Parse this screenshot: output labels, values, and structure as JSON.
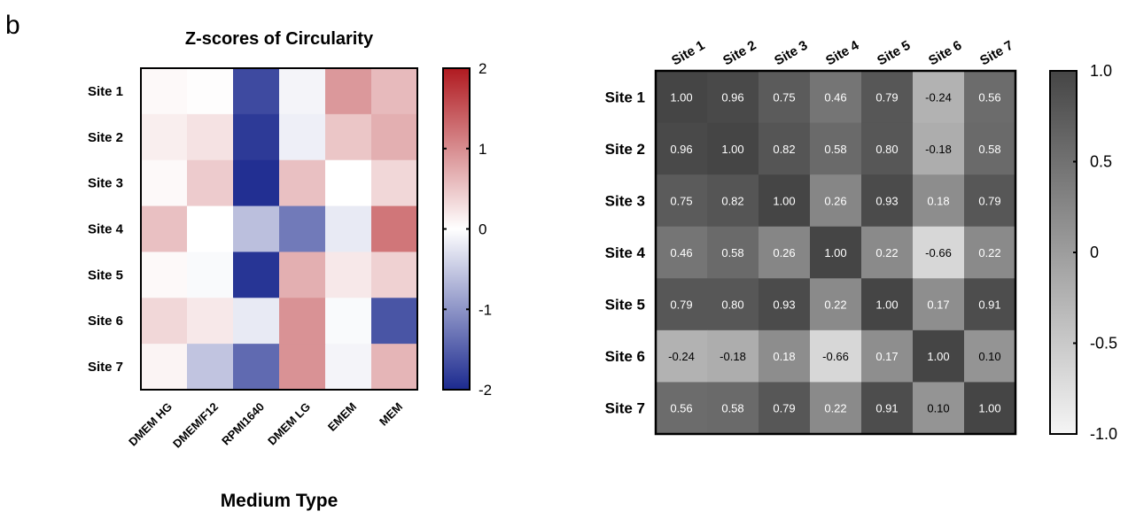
{
  "panel_label": "b",
  "chart_data": [
    {
      "type": "heatmap",
      "title": "Z-scores of Circularity",
      "xlabel": "Medium Type",
      "ylabel": "",
      "rows": [
        "Site 1",
        "Site 2",
        "Site 3",
        "Site 4",
        "Site 5",
        "Site 6",
        "Site 7"
      ],
      "columns": [
        "DMEM HG",
        "DMEM/F12",
        "RPMI1640",
        "DMEM LG",
        "EMEM",
        "MEM"
      ],
      "values": [
        [
          0.05,
          0.02,
          -1.7,
          -0.1,
          0.9,
          0.6
        ],
        [
          0.15,
          0.25,
          -1.85,
          -0.15,
          0.5,
          0.7
        ],
        [
          0.05,
          0.45,
          -1.95,
          0.55,
          0.0,
          0.35
        ],
        [
          0.55,
          0.0,
          -0.6,
          -1.25,
          -0.2,
          1.2
        ],
        [
          0.05,
          -0.05,
          -1.9,
          0.7,
          0.2,
          0.4
        ],
        [
          0.35,
          0.2,
          -0.2,
          0.95,
          -0.05,
          -1.6
        ],
        [
          0.1,
          -0.55,
          -1.4,
          0.95,
          -0.1,
          0.65
        ]
      ],
      "colorscale": {
        "min": -2,
        "max": 2,
        "low_color": "#1c2a8f",
        "mid_color": "#ffffff",
        "high_color": "#b01a20"
      },
      "colorbar_ticks": [
        "2",
        "1",
        "0",
        "-1",
        "-2"
      ]
    },
    {
      "type": "heatmap",
      "title": "",
      "xlabel": "",
      "ylabel": "",
      "rows": [
        "Site 1",
        "Site 2",
        "Site 3",
        "Site 4",
        "Site 5",
        "Site 6",
        "Site 7"
      ],
      "columns": [
        "Site 1",
        "Site 2",
        "Site 3",
        "Site 4",
        "Site 5",
        "Site 6",
        "Site 7"
      ],
      "values": [
        [
          1.0,
          0.96,
          0.75,
          0.46,
          0.79,
          -0.24,
          0.56
        ],
        [
          0.96,
          1.0,
          0.82,
          0.58,
          0.8,
          -0.18,
          0.58
        ],
        [
          0.75,
          0.82,
          1.0,
          0.26,
          0.93,
          0.18,
          0.79
        ],
        [
          0.46,
          0.58,
          0.26,
          1.0,
          0.22,
          -0.66,
          0.22
        ],
        [
          0.79,
          0.8,
          0.93,
          0.22,
          1.0,
          0.17,
          0.91
        ],
        [
          -0.24,
          -0.18,
          0.18,
          -0.66,
          0.17,
          1.0,
          0.1
        ],
        [
          0.56,
          0.58,
          0.79,
          0.22,
          0.91,
          0.1,
          1.0
        ]
      ],
      "cell_labels": [
        [
          "1.00",
          "0.96",
          "0.75",
          "0.46",
          "0.79",
          "-0.24",
          "0.56"
        ],
        [
          "0.96",
          "1.00",
          "0.82",
          "0.58",
          "0.80",
          "-0.18",
          "0.58"
        ],
        [
          "0.75",
          "0.82",
          "1.00",
          "0.26",
          "0.93",
          "0.18",
          "0.79"
        ],
        [
          "0.46",
          "0.58",
          "0.26",
          "1.00",
          "0.22",
          "-0.66",
          "0.22"
        ],
        [
          "0.79",
          "0.80",
          "0.93",
          "0.22",
          "1.00",
          "0.17",
          "0.91"
        ],
        [
          "-0.24",
          "-0.18",
          "0.18",
          "-0.66",
          "0.17",
          "1.00",
          "0.10"
        ],
        [
          "0.56",
          "0.58",
          "0.79",
          "0.22",
          "0.91",
          "0.10",
          "1.00"
        ]
      ],
      "colorscale": {
        "min": -1.0,
        "max": 1.0,
        "low_color": "#f5f5f5",
        "high_color": "#454545"
      },
      "colorbar_ticks": [
        "1.0",
        "0.5",
        "0",
        "-0.5",
        "-1.0"
      ]
    }
  ]
}
